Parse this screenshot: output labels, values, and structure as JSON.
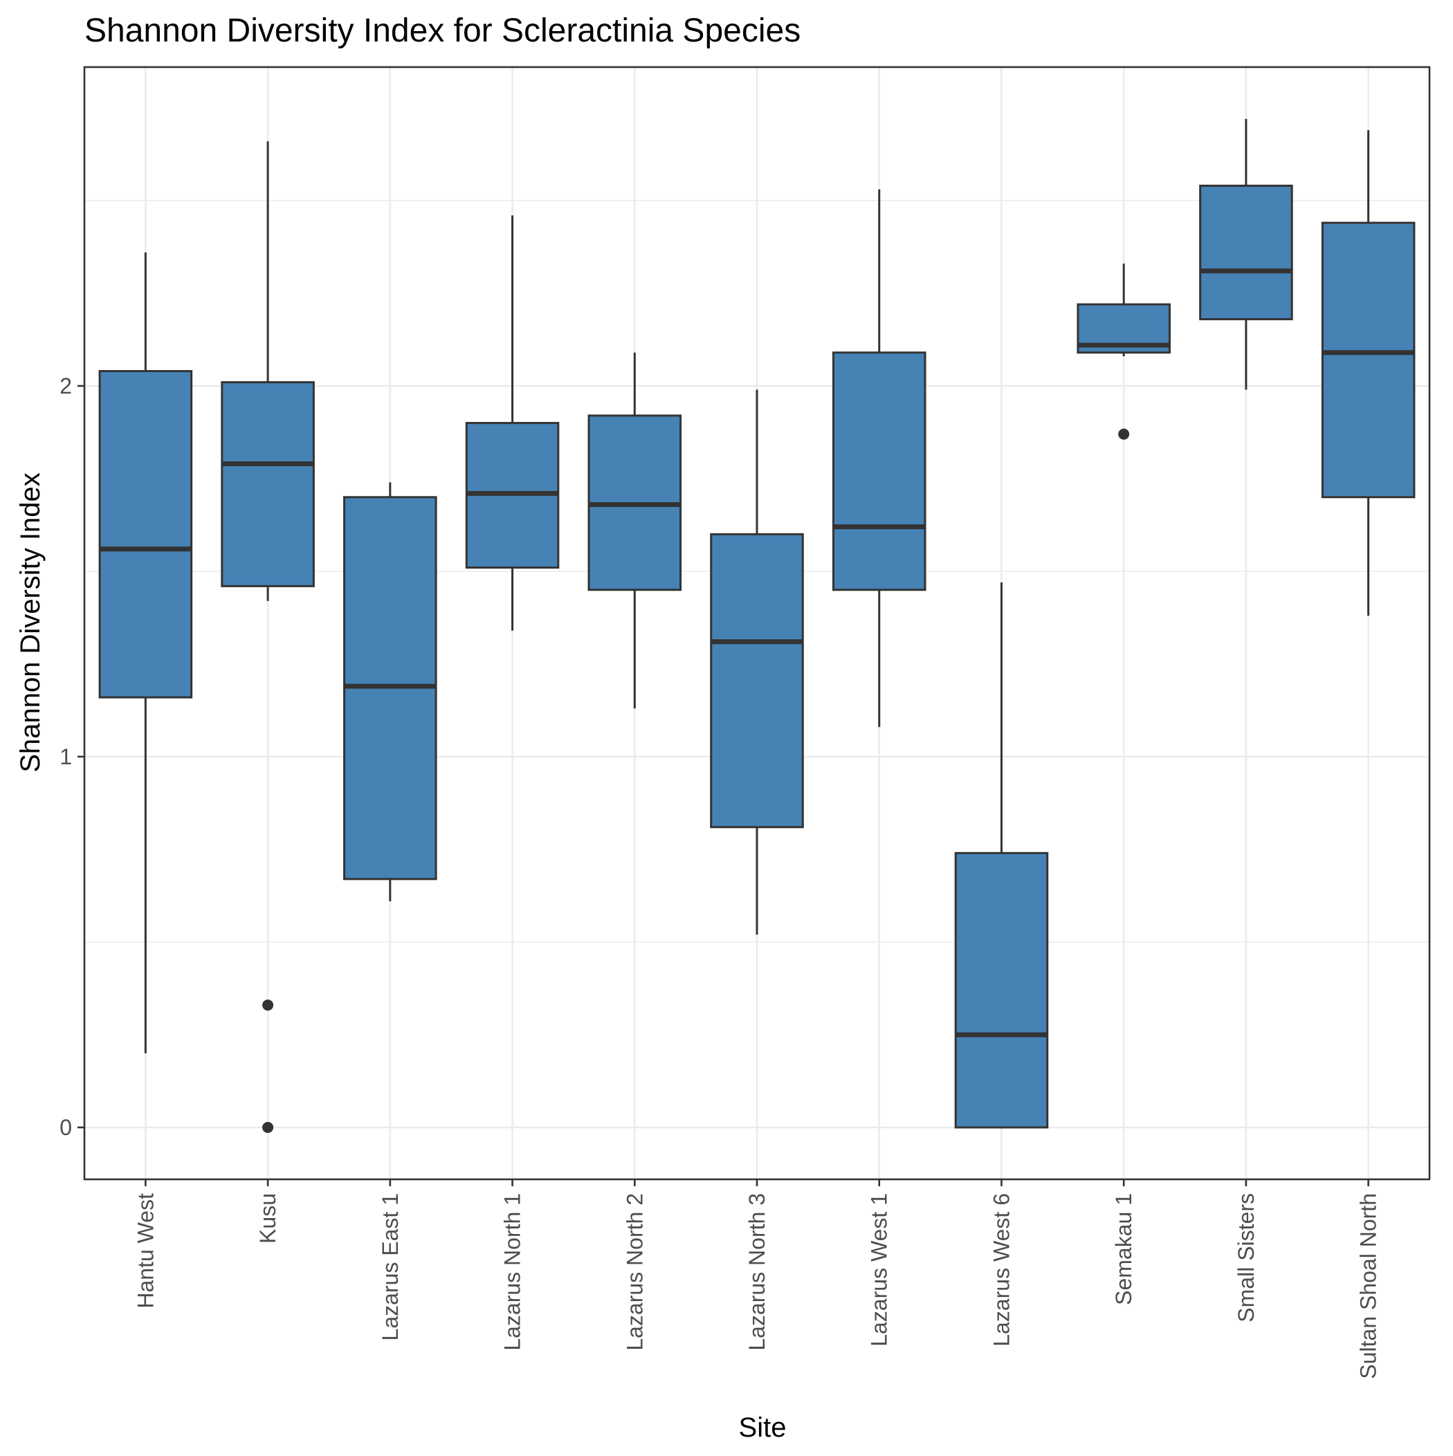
{
  "chart_data": {
    "type": "boxplot",
    "title": "Shannon Diversity Index for Scleractinia Species",
    "xlabel": "Site",
    "ylabel": "Shannon Diversity Index",
    "ylim": [
      -0.14,
      2.86
    ],
    "yticks": [
      0,
      1,
      2
    ],
    "yminor": [
      0.5,
      1.5,
      2.5
    ],
    "grid": true,
    "fill_color": "#4682B4",
    "line_color": "#333333",
    "categories": [
      "Hantu West",
      "Kusu",
      "Lazarus East 1",
      "Lazarus North 1",
      "Lazarus North 2",
      "Lazarus North 3",
      "Lazarus West 1",
      "Lazarus West 6",
      "Semakau 1",
      "Small Sisters",
      "Sultan Shoal North"
    ],
    "boxes": [
      {
        "site": "Hantu West",
        "whisker_low": 0.2,
        "q1": 1.16,
        "median": 1.56,
        "q3": 2.04,
        "whisker_high": 2.36,
        "outliers": []
      },
      {
        "site": "Kusu",
        "whisker_low": 1.42,
        "q1": 1.46,
        "median": 1.79,
        "q3": 2.01,
        "whisker_high": 2.66,
        "outliers": [
          0.33,
          0.0
        ]
      },
      {
        "site": "Lazarus East 1",
        "whisker_low": 0.61,
        "q1": 0.67,
        "median": 1.19,
        "q3": 1.7,
        "whisker_high": 1.74,
        "outliers": []
      },
      {
        "site": "Lazarus North 1",
        "whisker_low": 1.34,
        "q1": 1.51,
        "median": 1.71,
        "q3": 1.9,
        "whisker_high": 2.46,
        "outliers": []
      },
      {
        "site": "Lazarus North 2",
        "whisker_low": 1.13,
        "q1": 1.45,
        "median": 1.68,
        "q3": 1.92,
        "whisker_high": 2.09,
        "outliers": []
      },
      {
        "site": "Lazarus North 3",
        "whisker_low": 0.52,
        "q1": 0.81,
        "median": 1.31,
        "q3": 1.6,
        "whisker_high": 1.99,
        "outliers": []
      },
      {
        "site": "Lazarus West 1",
        "whisker_low": 1.08,
        "q1": 1.45,
        "median": 1.62,
        "q3": 2.09,
        "whisker_high": 2.53,
        "outliers": []
      },
      {
        "site": "Lazarus West 6",
        "whisker_low": 0.0,
        "q1": 0.0,
        "median": 0.25,
        "q3": 0.74,
        "whisker_high": 1.47,
        "outliers": []
      },
      {
        "site": "Semakau 1",
        "whisker_low": 2.08,
        "q1": 2.09,
        "median": 2.11,
        "q3": 2.22,
        "whisker_high": 2.33,
        "outliers": [
          1.87
        ]
      },
      {
        "site": "Small Sisters",
        "whisker_low": 1.99,
        "q1": 2.18,
        "median": 2.31,
        "q3": 2.54,
        "whisker_high": 2.72,
        "outliers": []
      },
      {
        "site": "Sultan Shoal North",
        "whisker_low": 1.38,
        "q1": 1.7,
        "median": 2.09,
        "q3": 2.44,
        "whisker_high": 2.69,
        "outliers": []
      }
    ]
  }
}
